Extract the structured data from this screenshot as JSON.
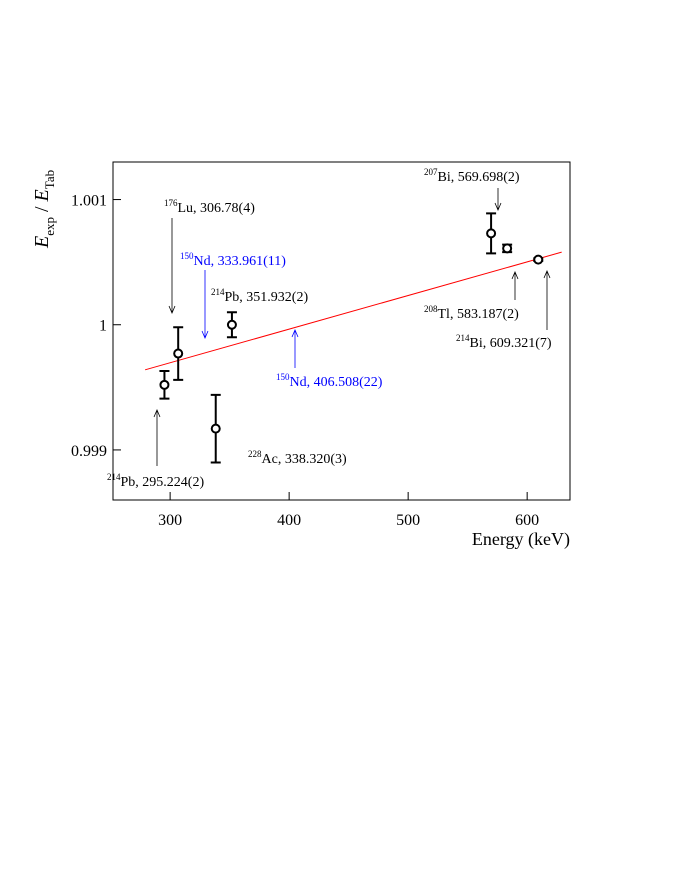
{
  "chart_data": {
    "type": "scatter",
    "x_label": "Energy (keV)",
    "y_label": {
      "symbol": "E",
      "sub": "exp",
      "sep": " / ",
      "symbol2": "E",
      "sub2": "Tab"
    },
    "x": [
      295.224,
      306.78,
      338.32,
      351.932,
      569.698,
      583.187,
      609.321
    ],
    "values": [
      0.99952,
      0.99977,
      0.99917,
      1.0,
      1.00073,
      1.00061,
      1.00052
    ],
    "errors": [
      0.00011,
      0.00021,
      0.00027,
      0.0001,
      0.00016,
      3e-05,
      1e-05
    ],
    "color": "#000000",
    "fit": {
      "x": [
        279,
        629
      ],
      "values": [
        0.99964,
        1.00058
      ],
      "color": "#ff0000"
    },
    "xlim": [
      252,
      636
    ],
    "ylim": [
      0.9986,
      1.0013
    ],
    "xticks": [
      300,
      400,
      500,
      600
    ],
    "yticks": [
      0.999,
      1,
      1.001
    ],
    "annotations": [
      {
        "sup": "214",
        "text": "Pb, 295.224(2)",
        "color": "#000000"
      },
      {
        "sup": "176",
        "text": "Lu, 306.78(4)",
        "color": "#000000"
      },
      {
        "sup": "150",
        "text": "Nd, 333.961(11)",
        "color": "#0000ff"
      },
      {
        "sup": "214",
        "text": "Pb, 351.932(2)",
        "color": "#000000"
      },
      {
        "sup": "228",
        "text": "Ac, 338.320(3)",
        "color": "#000000"
      },
      {
        "sup": "150",
        "text": "Nd, 406.508(22)",
        "color": "#0000ff"
      },
      {
        "sup": "207",
        "text": "Bi, 569.698(2)",
        "color": "#000000"
      },
      {
        "sup": "208",
        "text": "Tl, 583.187(2)",
        "color": "#000000"
      },
      {
        "sup": "214",
        "text": "Bi, 609.321(7)",
        "color": "#000000"
      }
    ]
  }
}
